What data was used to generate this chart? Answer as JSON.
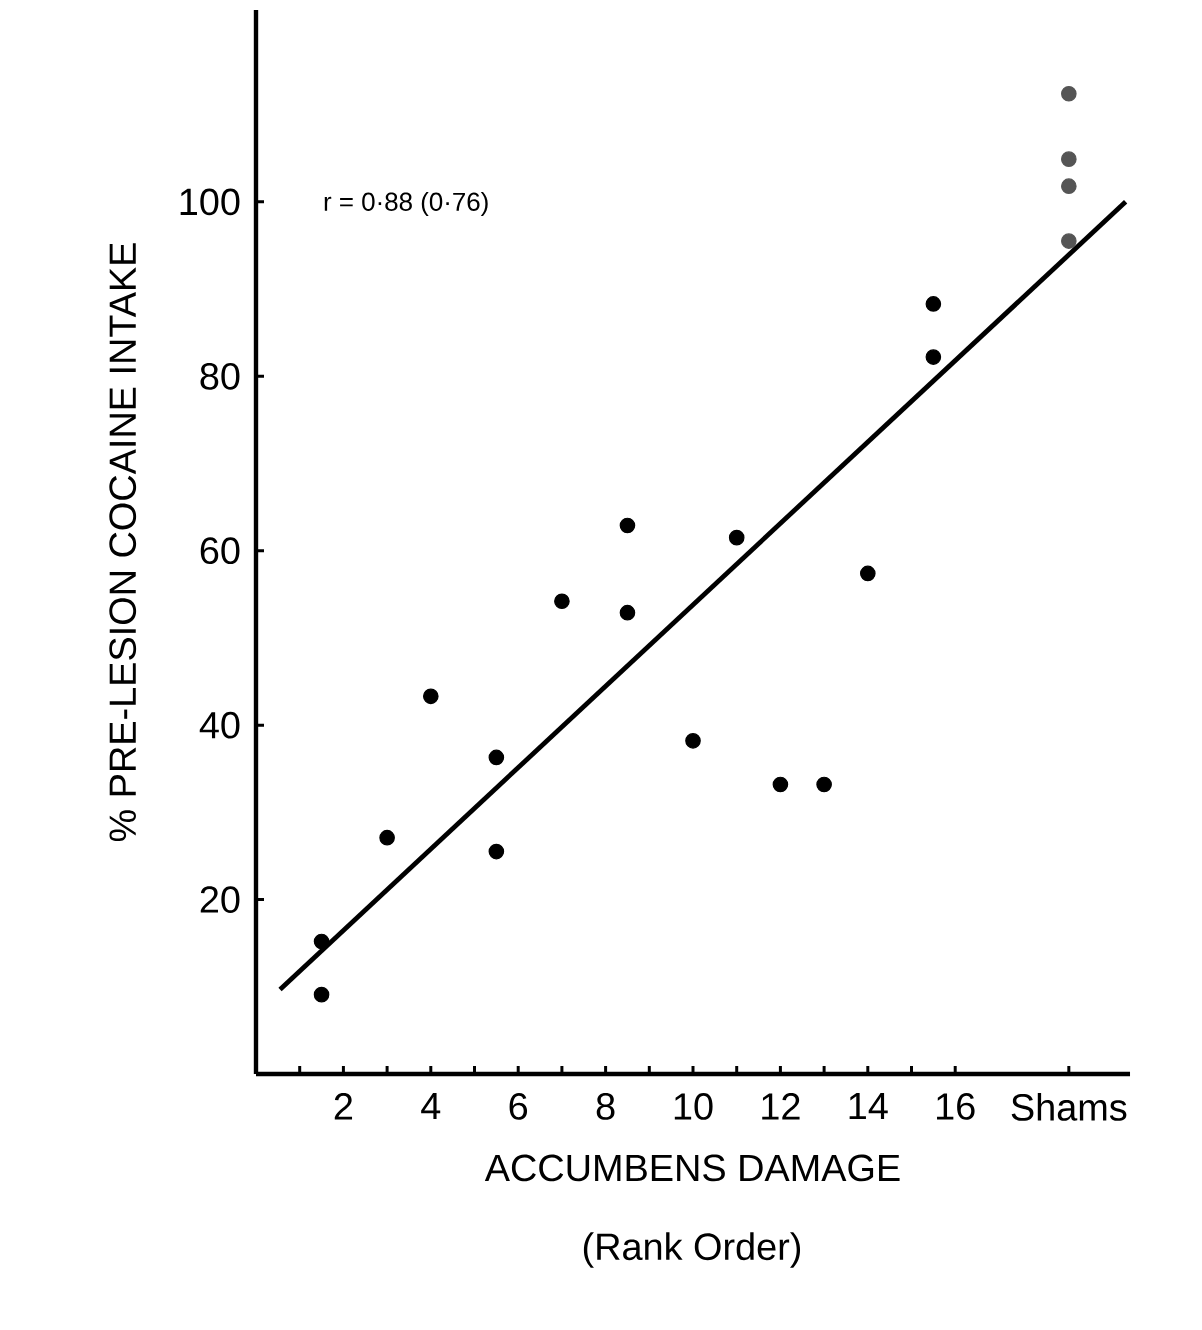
{
  "chart_data": {
    "type": "scatter",
    "xlabel": "ACCUMBENS DAMAGE",
    "ylabel": "% PRE-LESION COCAINE INTAKE",
    "annotations": [
      "r = 0·88   (0·76)",
      "(Rank Order)"
    ],
    "xlim": [
      0,
      20
    ],
    "ylim": [
      0,
      122
    ],
    "xticks": [
      {
        "value": 1,
        "label": null
      },
      {
        "value": 2,
        "label": "2"
      },
      {
        "value": 3,
        "label": null
      },
      {
        "value": 4,
        "label": "4"
      },
      {
        "value": 5,
        "label": null
      },
      {
        "value": 6,
        "label": "6"
      },
      {
        "value": 7,
        "label": null
      },
      {
        "value": 8,
        "label": "8"
      },
      {
        "value": 9,
        "label": null
      },
      {
        "value": 10,
        "label": "10"
      },
      {
        "value": 11,
        "label": null
      },
      {
        "value": 12,
        "label": "12"
      },
      {
        "value": 13,
        "label": null
      },
      {
        "value": 14,
        "label": "14"
      },
      {
        "value": 15,
        "label": null
      },
      {
        "value": 16,
        "label": "16"
      },
      {
        "value": 18.6,
        "label": "Shams"
      }
    ],
    "yticks": [
      20,
      40,
      60,
      80,
      100
    ],
    "grid": false,
    "series": [
      {
        "color": "#000000",
        "marker": "circle",
        "x": [
          1.5,
          1.5,
          3,
          4,
          5.5,
          5.5,
          7,
          8.5,
          8.5,
          10,
          11,
          12,
          13,
          14,
          15.5,
          15.5
        ],
        "values": [
          15.2,
          9.1,
          27.1,
          43.3,
          36.3,
          25.5,
          54.2,
          62.9,
          52.9,
          38.2,
          61.5,
          33.2,
          33.2,
          57.4,
          88.3,
          82.2
        ]
      },
      {
        "color": "#555555",
        "marker": "circle",
        "x": [
          18.6,
          18.6,
          18.6,
          18.6
        ],
        "values": [
          112.4,
          104.9,
          101.8,
          95.5
        ]
      },
      {
        "type": "line",
        "color": "#000000",
        "marker": "none",
        "line_style": "solid",
        "x": [
          0.55,
          19.9
        ],
        "values": [
          9.7,
          100
        ]
      }
    ]
  }
}
